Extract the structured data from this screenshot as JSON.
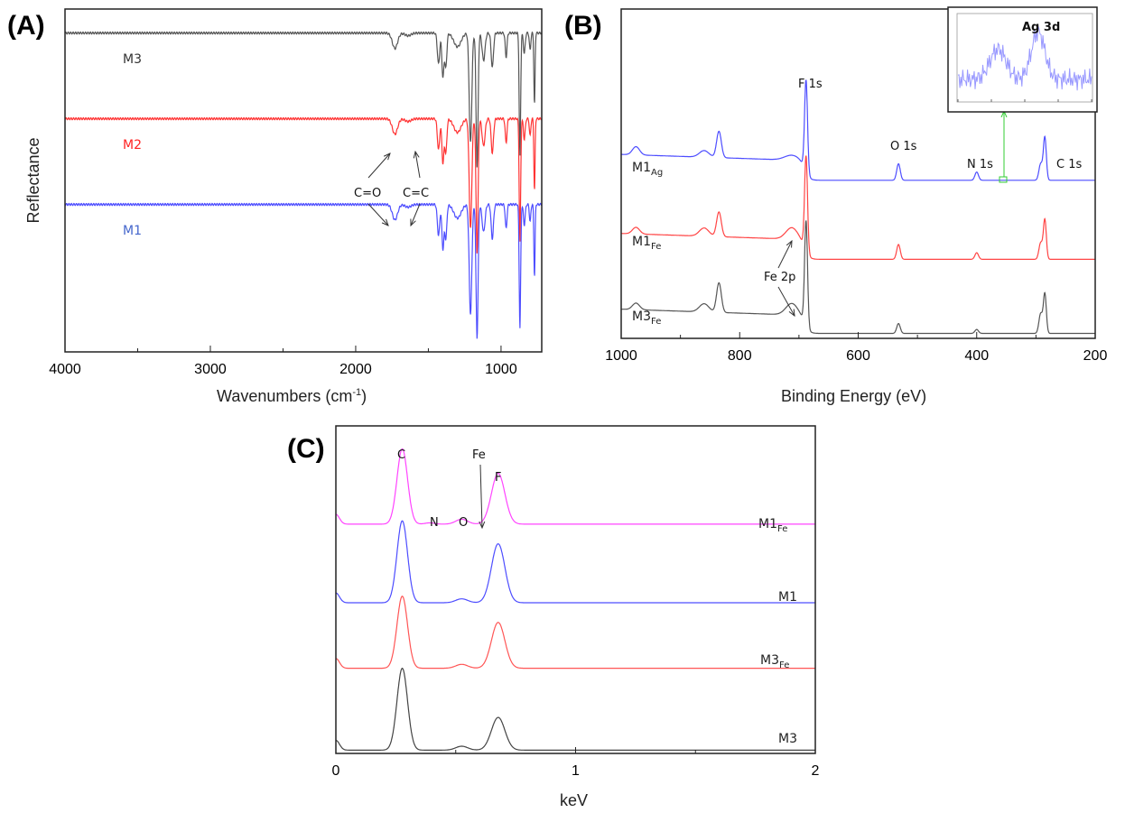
{
  "chart_data": [
    {
      "type": "line",
      "panel_label": "(A)",
      "xlabel": "Wavenumbers (cm",
      "xlabel_sup": "-1",
      "xlabel_end": ")",
      "ylabel": "Reflectance",
      "xlim": [
        4000,
        720
      ],
      "ylim": [
        0,
        10
      ],
      "xticks": [
        4000,
        3000,
        2000,
        1000
      ],
      "minor_xticks": [
        3500,
        2500,
        1500
      ],
      "direction": "down",
      "shared_peaks": [
        [
          1730,
          0.45,
          18
        ],
        [
          1640,
          0.08,
          20
        ],
        [
          1430,
          0.9,
          8
        ],
        [
          1400,
          1.3,
          7
        ],
        [
          1380,
          1.0,
          7
        ],
        [
          1300,
          0.4,
          25
        ],
        [
          1210,
          3.2,
          9
        ],
        [
          1165,
          3.9,
          7
        ],
        [
          1120,
          0.8,
          10
        ],
        [
          1060,
          1.0,
          8
        ],
        [
          965,
          0.7,
          6
        ],
        [
          870,
          3.6,
          5
        ],
        [
          840,
          0.6,
          6
        ],
        [
          800,
          0.5,
          5
        ],
        [
          770,
          2.1,
          4
        ]
      ],
      "series": [
        {
          "name": "M3",
          "color": "#555555",
          "offset": 9.3
        },
        {
          "name": "M2",
          "color": "#ff3333",
          "offset": 6.8
        },
        {
          "name": "M1",
          "color": "#4d4dff",
          "offset": 4.3
        }
      ],
      "annotations": [
        "C=O",
        "C=C"
      ]
    },
    {
      "type": "line",
      "panel_label": "(B)",
      "xlabel": "Binding Energy (eV)",
      "xlim": [
        1000,
        200
      ],
      "ylim": [
        0,
        10
      ],
      "xticks": [
        1000,
        800,
        600,
        400,
        200
      ],
      "minor_xticks": [
        900,
        700,
        500,
        300
      ],
      "direction": "up",
      "step_at": 690,
      "series": [
        {
          "name": "M1",
          "sub": "Ag",
          "color": "#4d4dff",
          "left": 5.4,
          "right": 4.8,
          "peaks": [
            [
              975,
              0.25,
              6
            ],
            [
              860,
              0.2,
              8
            ],
            [
              835,
              0.8,
              4
            ],
            [
              712,
              0.15,
              12
            ],
            [
              688,
              2.8,
              2.5
            ],
            [
              532,
              0.5,
              3
            ],
            [
              400,
              0.25,
              3
            ],
            [
              292,
              0.5,
              3
            ],
            [
              285,
              1.3,
              2.5
            ]
          ]
        },
        {
          "name": "M1",
          "sub": "Fe",
          "color": "#ff4444",
          "left": 3.0,
          "right": 2.4,
          "peaks": [
            [
              975,
              0.2,
              6
            ],
            [
              860,
              0.25,
              8
            ],
            [
              835,
              0.75,
              4
            ],
            [
              712,
              0.35,
              10
            ],
            [
              688,
              2.9,
              2.5
            ],
            [
              532,
              0.45,
              3
            ],
            [
              400,
              0.2,
              3
            ],
            [
              292,
              0.5,
              3
            ],
            [
              285,
              1.2,
              2.5
            ]
          ]
        },
        {
          "name": "M3",
          "sub": "Fe",
          "color": "#555555",
          "left": 0.7,
          "right": 0.15,
          "peaks": [
            [
              975,
              0.2,
              6
            ],
            [
              860,
              0.25,
              8
            ],
            [
              835,
              0.9,
              4
            ],
            [
              712,
              0.35,
              10
            ],
            [
              688,
              3.2,
              2.5
            ],
            [
              532,
              0.3,
              3
            ],
            [
              400,
              0.12,
              3
            ],
            [
              292,
              0.6,
              3
            ],
            [
              285,
              1.2,
              2.5
            ]
          ]
        }
      ],
      "annotations": [
        "F 1s",
        "O 1s",
        "N 1s",
        "C 1s",
        "Fe 2p"
      ],
      "inset": {
        "title": "Ag 3d",
        "xlim": [
          380,
          360
        ],
        "color": "#9999ff",
        "peaks": [
          [
            374,
            0.35,
            1.2
          ],
          [
            368,
            0.55,
            1.0
          ]
        ]
      }
    },
    {
      "type": "line",
      "panel_label": "(C)",
      "xlabel": "keV",
      "xlim": [
        0,
        2
      ],
      "ylim": [
        0,
        10
      ],
      "xticks": [
        0,
        1,
        2
      ],
      "minor_xticks": [
        0.5,
        1.5
      ],
      "direction": "up",
      "series": [
        {
          "name": "M1",
          "sub": "Fe",
          "color": "#ff44ff",
          "offset": 7.0,
          "peaks": [
            [
              0.277,
              2.3,
              0.022
            ],
            [
              0.392,
              0.04,
              0.02
            ],
            [
              0.525,
              0.15,
              0.025
            ],
            [
              0.677,
              1.55,
              0.028
            ],
            [
              0.0,
              0.3,
              0.015
            ]
          ]
        },
        {
          "name": "M1",
          "sub": "",
          "color": "#4d4dff",
          "offset": 4.6,
          "peaks": [
            [
              0.277,
              2.5,
              0.022
            ],
            [
              0.525,
              0.12,
              0.025
            ],
            [
              0.677,
              1.8,
              0.028
            ],
            [
              0.0,
              0.3,
              0.015
            ]
          ]
        },
        {
          "name": "M3",
          "sub": "Fe",
          "color": "#ff5555",
          "offset": 2.6,
          "peaks": [
            [
              0.277,
              2.2,
              0.022
            ],
            [
              0.525,
              0.12,
              0.025
            ],
            [
              0.677,
              1.4,
              0.028
            ],
            [
              0.0,
              0.3,
              0.015
            ]
          ]
        },
        {
          "name": "M3",
          "sub": "",
          "color": "#444444",
          "offset": 0.1,
          "peaks": [
            [
              0.277,
              2.5,
              0.022
            ],
            [
              0.525,
              0.12,
              0.025
            ],
            [
              0.677,
              1.0,
              0.028
            ],
            [
              0.0,
              0.3,
              0.015
            ]
          ]
        }
      ],
      "annotations": [
        "C",
        "N",
        "O",
        "Fe",
        "F"
      ]
    }
  ]
}
